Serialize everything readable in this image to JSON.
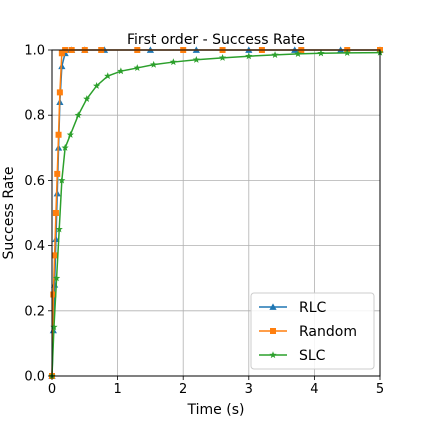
{
  "chart_data": {
    "type": "line",
    "title": "First order - Success Rate",
    "xlabel": "Time (s)",
    "ylabel": "Success Rate",
    "xlim": [
      0,
      5
    ],
    "ylim": [
      0,
      1
    ],
    "xticks": [
      "0",
      "1",
      "2",
      "3",
      "4",
      "5"
    ],
    "yticks": [
      "0.0",
      "0.2",
      "0.4",
      "0.6",
      "0.8",
      "1.0"
    ],
    "grid": true,
    "legend_position": "lower-right",
    "series": [
      {
        "name": "RLC",
        "color": "#1f77b4",
        "marker": "triangle",
        "x": [
          0,
          0.02,
          0.04,
          0.06,
          0.08,
          0.1,
          0.12,
          0.15,
          0.2,
          0.3,
          0.5,
          0.8,
          1.5,
          2.2,
          3.0,
          3.7,
          4.4,
          5.0
        ],
        "y": [
          0.0,
          0.14,
          0.28,
          0.42,
          0.56,
          0.7,
          0.84,
          0.95,
          0.99,
          1.0,
          1.0,
          1.0,
          1.0,
          1.0,
          1.0,
          1.0,
          1.0,
          1.0
        ]
      },
      {
        "name": "Random",
        "color": "#ff7f0e",
        "marker": "square",
        "x": [
          0,
          0.02,
          0.04,
          0.06,
          0.08,
          0.1,
          0.12,
          0.15,
          0.2,
          0.3,
          0.5,
          0.75,
          1.3,
          2.0,
          2.6,
          3.2,
          3.8,
          4.5,
          5.0
        ],
        "y": [
          0.0,
          0.25,
          0.37,
          0.5,
          0.62,
          0.74,
          0.87,
          0.99,
          1.0,
          1.0,
          1.0,
          1.0,
          1.0,
          1.0,
          1.0,
          1.0,
          1.0,
          1.0,
          1.0
        ]
      },
      {
        "name": "SLC",
        "color": "#2ca02c",
        "marker": "star",
        "x": [
          0,
          0.03,
          0.07,
          0.11,
          0.15,
          0.2,
          0.28,
          0.4,
          0.53,
          0.68,
          0.85,
          1.05,
          1.3,
          1.55,
          1.85,
          2.2,
          2.6,
          3.0,
          3.4,
          3.75,
          4.1,
          4.5,
          5.0
        ],
        "y": [
          0.0,
          0.15,
          0.3,
          0.45,
          0.6,
          0.7,
          0.74,
          0.8,
          0.85,
          0.89,
          0.92,
          0.935,
          0.945,
          0.955,
          0.963,
          0.97,
          0.976,
          0.981,
          0.985,
          0.988,
          0.99,
          0.991,
          0.992
        ]
      }
    ]
  }
}
